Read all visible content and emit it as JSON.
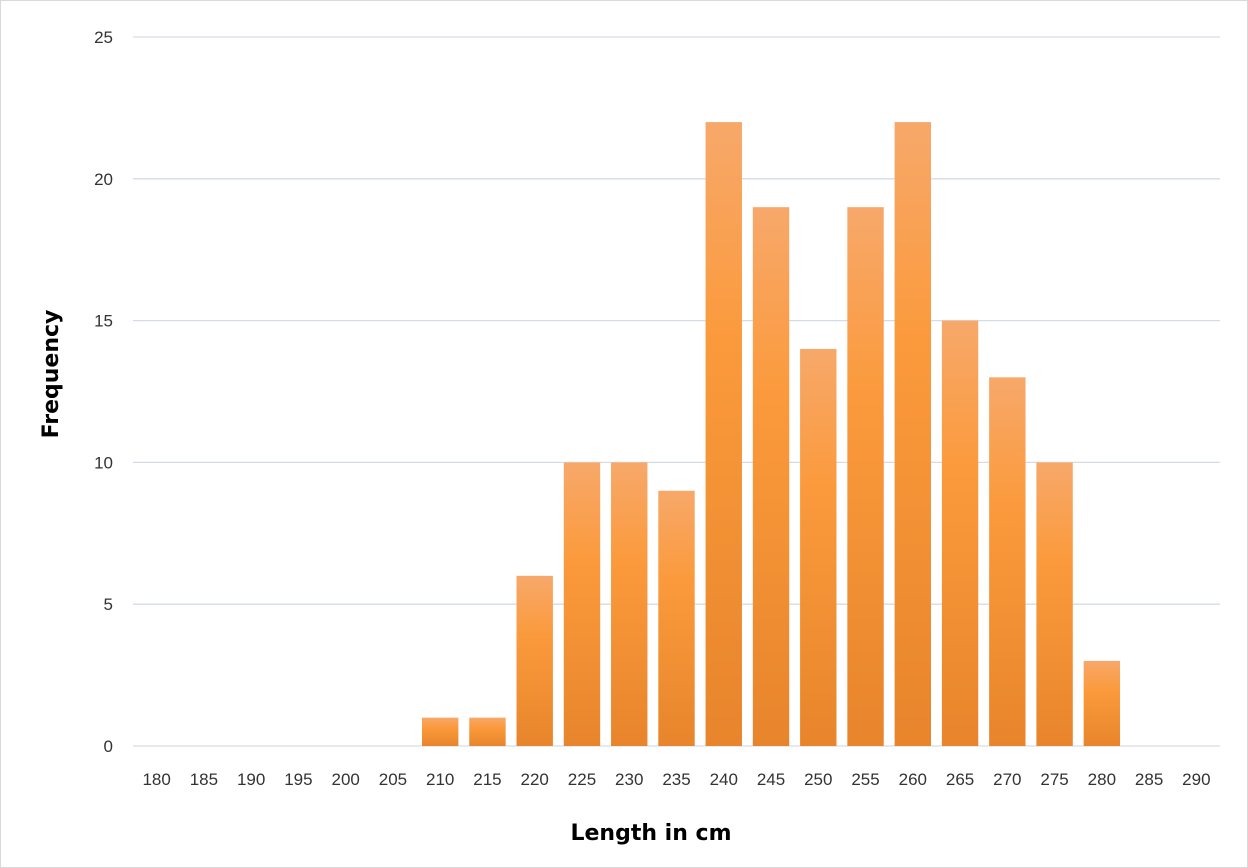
{
  "chart_data": {
    "type": "bar",
    "xlabel": "Length in cm",
    "ylabel": "Frequency",
    "categories": [
      "180",
      "185",
      "190",
      "195",
      "200",
      "205",
      "210",
      "215",
      "220",
      "225",
      "230",
      "235",
      "240",
      "245",
      "250",
      "255",
      "260",
      "265",
      "270",
      "275",
      "280",
      "285",
      "290"
    ],
    "values": [
      0,
      0,
      0,
      0,
      0,
      0,
      1,
      1,
      6,
      10,
      10,
      9,
      22,
      19,
      14,
      19,
      22,
      15,
      13,
      10,
      3,
      0,
      0
    ],
    "ylim": [
      0,
      25
    ],
    "yticks": [
      "0",
      "5",
      "10",
      "15",
      "20",
      "25"
    ],
    "grid": true,
    "legend": "none",
    "colors": {
      "bar_top": "#f7a86a",
      "bar_mid": "#fb9a3c",
      "bar_bottom": "#e8852c",
      "gridline": "#d6dce5"
    }
  }
}
